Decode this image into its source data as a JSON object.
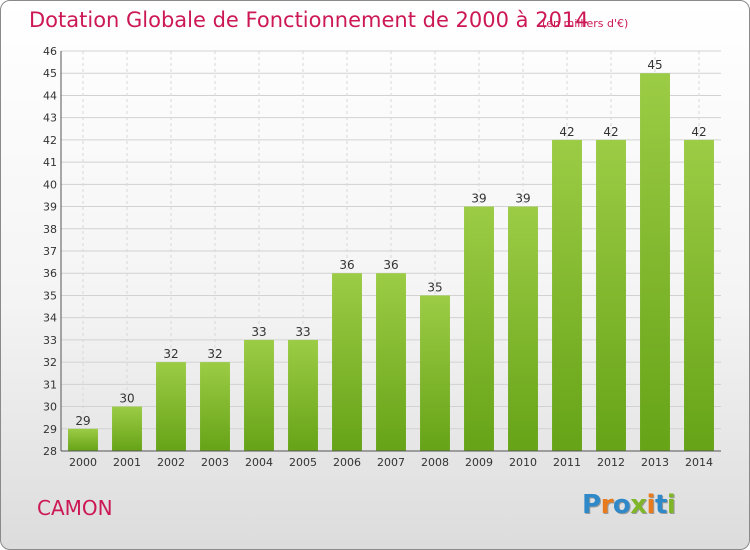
{
  "chart_data": {
    "type": "bar",
    "title": "Dotation Globale de Fonctionnement de 2000 à 2014",
    "subtitle": "(en milliers d'€)",
    "categories": [
      "2000",
      "2001",
      "2002",
      "2003",
      "2004",
      "2005",
      "2006",
      "2007",
      "2008",
      "2009",
      "2010",
      "2011",
      "2012",
      "2013",
      "2014"
    ],
    "values": [
      29,
      30,
      32,
      32,
      33,
      33,
      36,
      36,
      35,
      39,
      39,
      42,
      42,
      45,
      42
    ],
    "ylim": [
      28,
      46
    ],
    "yticks": [
      28,
      29,
      30,
      31,
      32,
      33,
      34,
      35,
      36,
      37,
      38,
      39,
      40,
      41,
      42,
      43,
      44,
      45,
      46
    ],
    "grid": true,
    "bar_color_light": "#9ccc45",
    "bar_color_dark": "#66a317"
  },
  "place_name": "CAMON",
  "logo": {
    "text": "Proxiti",
    "colors": [
      "#2f88c8",
      "#e87b1b",
      "#2f88c8",
      "#7fb628",
      "#e87b1b",
      "#2f88c8",
      "#7fb628"
    ]
  }
}
